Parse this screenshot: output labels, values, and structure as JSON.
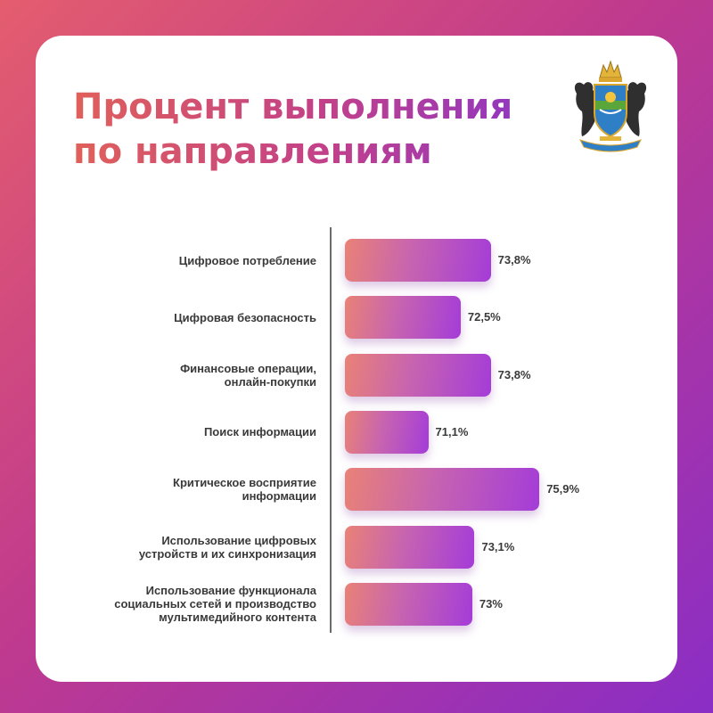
{
  "title_lines": [
    "Процент выполнения",
    "по направлениям"
  ],
  "colors": {
    "background_start": "#e45d6e",
    "background_end": "#8a2ec6",
    "bar_start": "#e98276",
    "bar_end": "#a43cd8",
    "text": "#3a3a3a"
  },
  "emblem_icon": "coat-of-arms-icon",
  "chart_data": {
    "type": "bar",
    "orientation": "horizontal",
    "categories": [
      "Цифровое потребление",
      "Цифровая безопасность",
      "Финансовые операции, онлайн-покупки",
      "Поиск информации",
      "Критическое восприятие информации",
      "Использование цифровых устройств и их синхронизация",
      "Использование функционала социальных сетей и производство мультимедийного контента"
    ],
    "category_lines": [
      [
        "Цифровое потребление"
      ],
      [
        "Цифровая безопасность"
      ],
      [
        "Финансовые операции,",
        "онлайн-покупки"
      ],
      [
        "Поиск информации"
      ],
      [
        "Критическое восприятие",
        "информации"
      ],
      [
        "Использование цифровых",
        "устройств и их синхронизация"
      ],
      [
        "Использование функционала",
        "социальных сетей и производство",
        "мультимедийного контента"
      ]
    ],
    "values": [
      73.8,
      72.5,
      73.8,
      71.1,
      75.9,
      73.1,
      73
    ],
    "value_labels": [
      "73,8%",
      "72,5%",
      "73,8%",
      "71,1%",
      "75,9%",
      "73,1%",
      "73%"
    ],
    "grid": false,
    "legend": "none"
  }
}
